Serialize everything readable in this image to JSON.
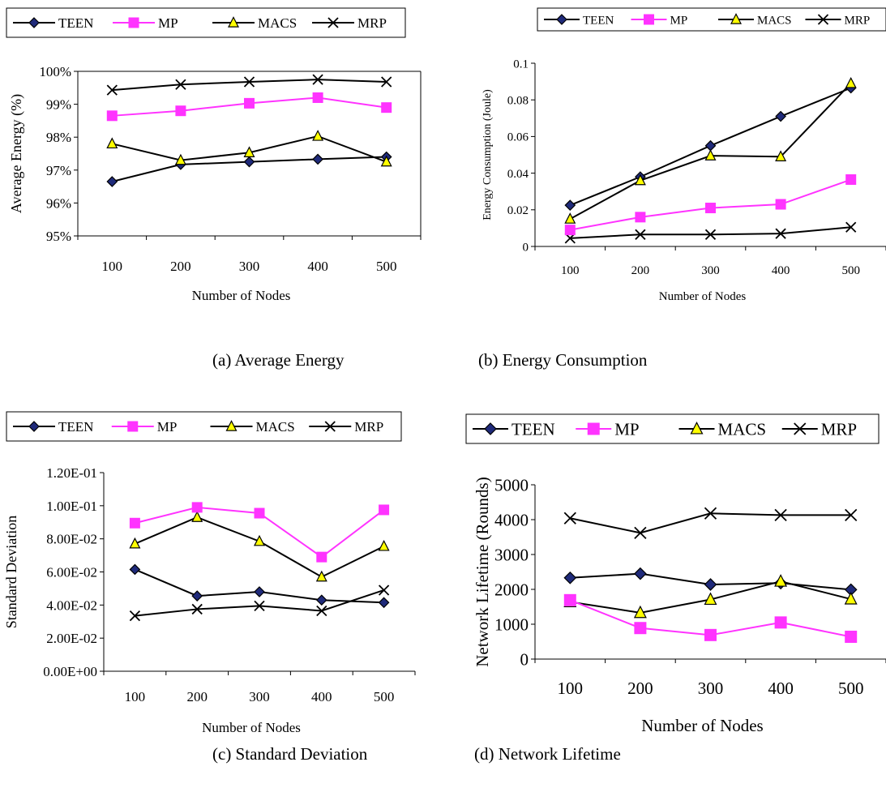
{
  "colors": {
    "TEEN": "#000000",
    "MP": "#ff33ff",
    "MACS": "#000000",
    "MRP": "#000000",
    "TEEN_fill": "#1f2a7a",
    "MP_fill": "#ff33ff",
    "MACS_fill": "#ffff00"
  },
  "chart_data": [
    {
      "type": "line",
      "caption": "(a) Average Energy",
      "xlabel": "Number of Nodes",
      "ylabel": "Average Energy (%)",
      "categories": [
        "100",
        "200",
        "300",
        "400",
        "500"
      ],
      "yticks": [
        "95%",
        "96%",
        "97%",
        "98%",
        "99%",
        "100%"
      ],
      "ylim": [
        95,
        100
      ],
      "legend": [
        "TEEN",
        "MP",
        "MACS",
        "MRP"
      ],
      "series": [
        {
          "name": "TEEN",
          "marker": "diamond",
          "values": [
            96.65,
            97.17,
            97.25,
            97.33,
            97.4
          ]
        },
        {
          "name": "MP",
          "marker": "square",
          "values": [
            98.65,
            98.8,
            99.03,
            99.2,
            98.9
          ]
        },
        {
          "name": "MACS",
          "marker": "triangle",
          "values": [
            97.8,
            97.3,
            97.53,
            98.03,
            97.25
          ]
        },
        {
          "name": "MRP",
          "marker": "x",
          "values": [
            99.43,
            99.6,
            99.68,
            99.75,
            99.68
          ]
        }
      ]
    },
    {
      "type": "line",
      "caption": "(b) Energy Consumption",
      "xlabel": "Number of Nodes",
      "ylabel": "Energy Consumption (Joule)",
      "categories": [
        "100",
        "200",
        "300",
        "400",
        "500"
      ],
      "yticks": [
        "0",
        "0.02",
        "0.04",
        "0.06",
        "0.08",
        "0.1"
      ],
      "ylim": [
        0,
        0.1
      ],
      "legend": [
        "TEEN",
        "MP",
        "MACS",
        "MRP"
      ],
      "series": [
        {
          "name": "TEEN",
          "marker": "diamond",
          "values": [
            0.0225,
            0.038,
            0.055,
            0.071,
            0.0865
          ]
        },
        {
          "name": "MP",
          "marker": "square",
          "values": [
            0.009,
            0.016,
            0.021,
            0.023,
            0.0365
          ]
        },
        {
          "name": "MACS",
          "marker": "triangle",
          "values": [
            0.015,
            0.036,
            0.0495,
            0.049,
            0.089
          ]
        },
        {
          "name": "MRP",
          "marker": "x",
          "values": [
            0.0045,
            0.0065,
            0.0065,
            0.007,
            0.0105
          ]
        }
      ]
    },
    {
      "type": "line",
      "caption": "(c) Standard Deviation",
      "xlabel": "Number of Nodes",
      "ylabel": "Standard Deviation",
      "categories": [
        "100",
        "200",
        "300",
        "400",
        "500"
      ],
      "yticks": [
        "0.00E+00",
        "2.00E-02",
        "4.00E-02",
        "6.00E-02",
        "8.00E-02",
        "1.00E-01",
        "1.20E-01"
      ],
      "ylim": [
        0,
        0.12
      ],
      "legend": [
        "TEEN",
        "MP",
        "MACS",
        "MRP"
      ],
      "series": [
        {
          "name": "TEEN",
          "marker": "diamond",
          "values": [
            0.0615,
            0.0455,
            0.048,
            0.043,
            0.0415
          ]
        },
        {
          "name": "MP",
          "marker": "square",
          "values": [
            0.0895,
            0.099,
            0.0955,
            0.069,
            0.0975
          ]
        },
        {
          "name": "MACS",
          "marker": "triangle",
          "values": [
            0.077,
            0.093,
            0.0785,
            0.057,
            0.0755
          ]
        },
        {
          "name": "MRP",
          "marker": "x",
          "values": [
            0.0335,
            0.0375,
            0.0395,
            0.0365,
            0.049
          ]
        }
      ]
    },
    {
      "type": "line",
      "caption": "(d) Network Lifetime",
      "xlabel": "Number of Nodes",
      "ylabel": "Network Lifetime (Rounds)",
      "categories": [
        "100",
        "200",
        "300",
        "400",
        "500"
      ],
      "yticks": [
        "0",
        "1000",
        "2000",
        "3000",
        "4000",
        "5000"
      ],
      "ylim": [
        0,
        5000
      ],
      "legend": [
        "TEEN",
        "MP",
        "MACS",
        "MRP"
      ],
      "series": [
        {
          "name": "TEEN",
          "marker": "diamond",
          "values": [
            2330,
            2450,
            2140,
            2180,
            1990
          ]
        },
        {
          "name": "MP",
          "marker": "square",
          "values": [
            1690,
            890,
            690,
            1050,
            640
          ]
        },
        {
          "name": "MACS",
          "marker": "triangle",
          "values": [
            1640,
            1330,
            1710,
            2230,
            1720
          ]
        },
        {
          "name": "MRP",
          "marker": "x",
          "values": [
            4040,
            3620,
            4180,
            4130,
            4130
          ]
        }
      ]
    }
  ]
}
